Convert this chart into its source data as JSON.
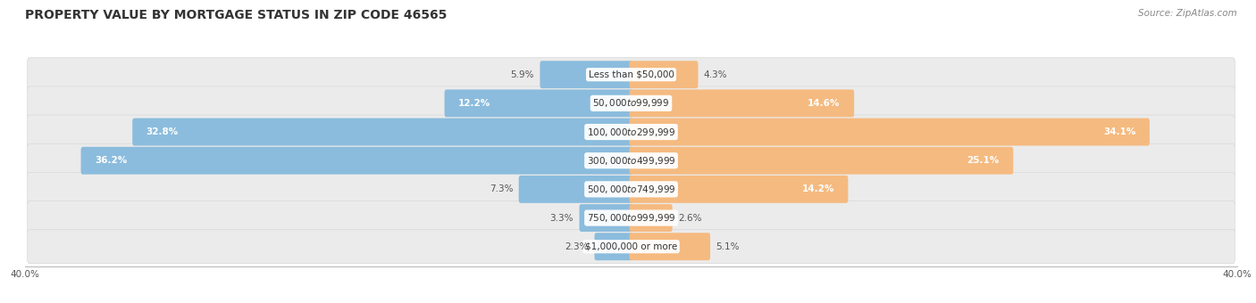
{
  "title": "PROPERTY VALUE BY MORTGAGE STATUS IN ZIP CODE 46565",
  "source": "Source: ZipAtlas.com",
  "categories": [
    "Less than $50,000",
    "$50,000 to $99,999",
    "$100,000 to $299,999",
    "$300,000 to $499,999",
    "$500,000 to $749,999",
    "$750,000 to $999,999",
    "$1,000,000 or more"
  ],
  "without_mortgage": [
    5.9,
    12.2,
    32.8,
    36.2,
    7.3,
    3.3,
    2.3
  ],
  "with_mortgage": [
    4.3,
    14.6,
    34.1,
    25.1,
    14.2,
    2.6,
    5.1
  ],
  "xlim": 40.0,
  "blue_color": "#8BBCDD",
  "orange_color": "#F5BA80",
  "bg_row_color": "#EBEBEB",
  "bg_row_color_alt": "#E2E2E2",
  "title_fontsize": 10,
  "source_fontsize": 7.5,
  "cat_label_fontsize": 7.5,
  "bar_label_fontsize": 7.5,
  "legend_fontsize": 8,
  "axis_label": "40.0%"
}
